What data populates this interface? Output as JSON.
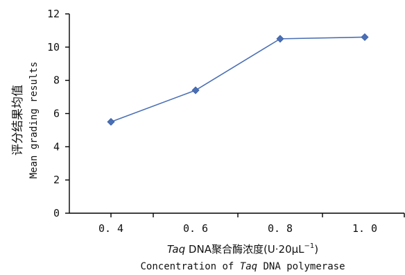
{
  "chart_data": {
    "type": "line",
    "categories": [
      "0. 4",
      "0. 6",
      "0. 8",
      "1. 0"
    ],
    "x": [
      0.4,
      0.6,
      0.8,
      1.0
    ],
    "series": [
      {
        "values": [
          5.5,
          7.4,
          10.5,
          10.6
        ],
        "color": "#4a6fb5",
        "marker": "diamond"
      }
    ],
    "ylim": [
      0,
      12
    ],
    "yticks": [
      "0",
      "2",
      "4",
      "6",
      "8",
      "10",
      "12"
    ],
    "ylabel": {
      "cn": "评分结果均值",
      "en": "Mean grading results"
    },
    "xlabel": {
      "cn_prefix": "Taq",
      "cn_main": " DNA聚合酶浓度(U·20μL",
      "cn_sup": "−1",
      "cn_suffix": ")",
      "en_prefix": "Concentration of ",
      "en_italic": "Taq",
      "en_suffix": " DNA polymerase"
    },
    "grid": false,
    "legend": "none"
  }
}
